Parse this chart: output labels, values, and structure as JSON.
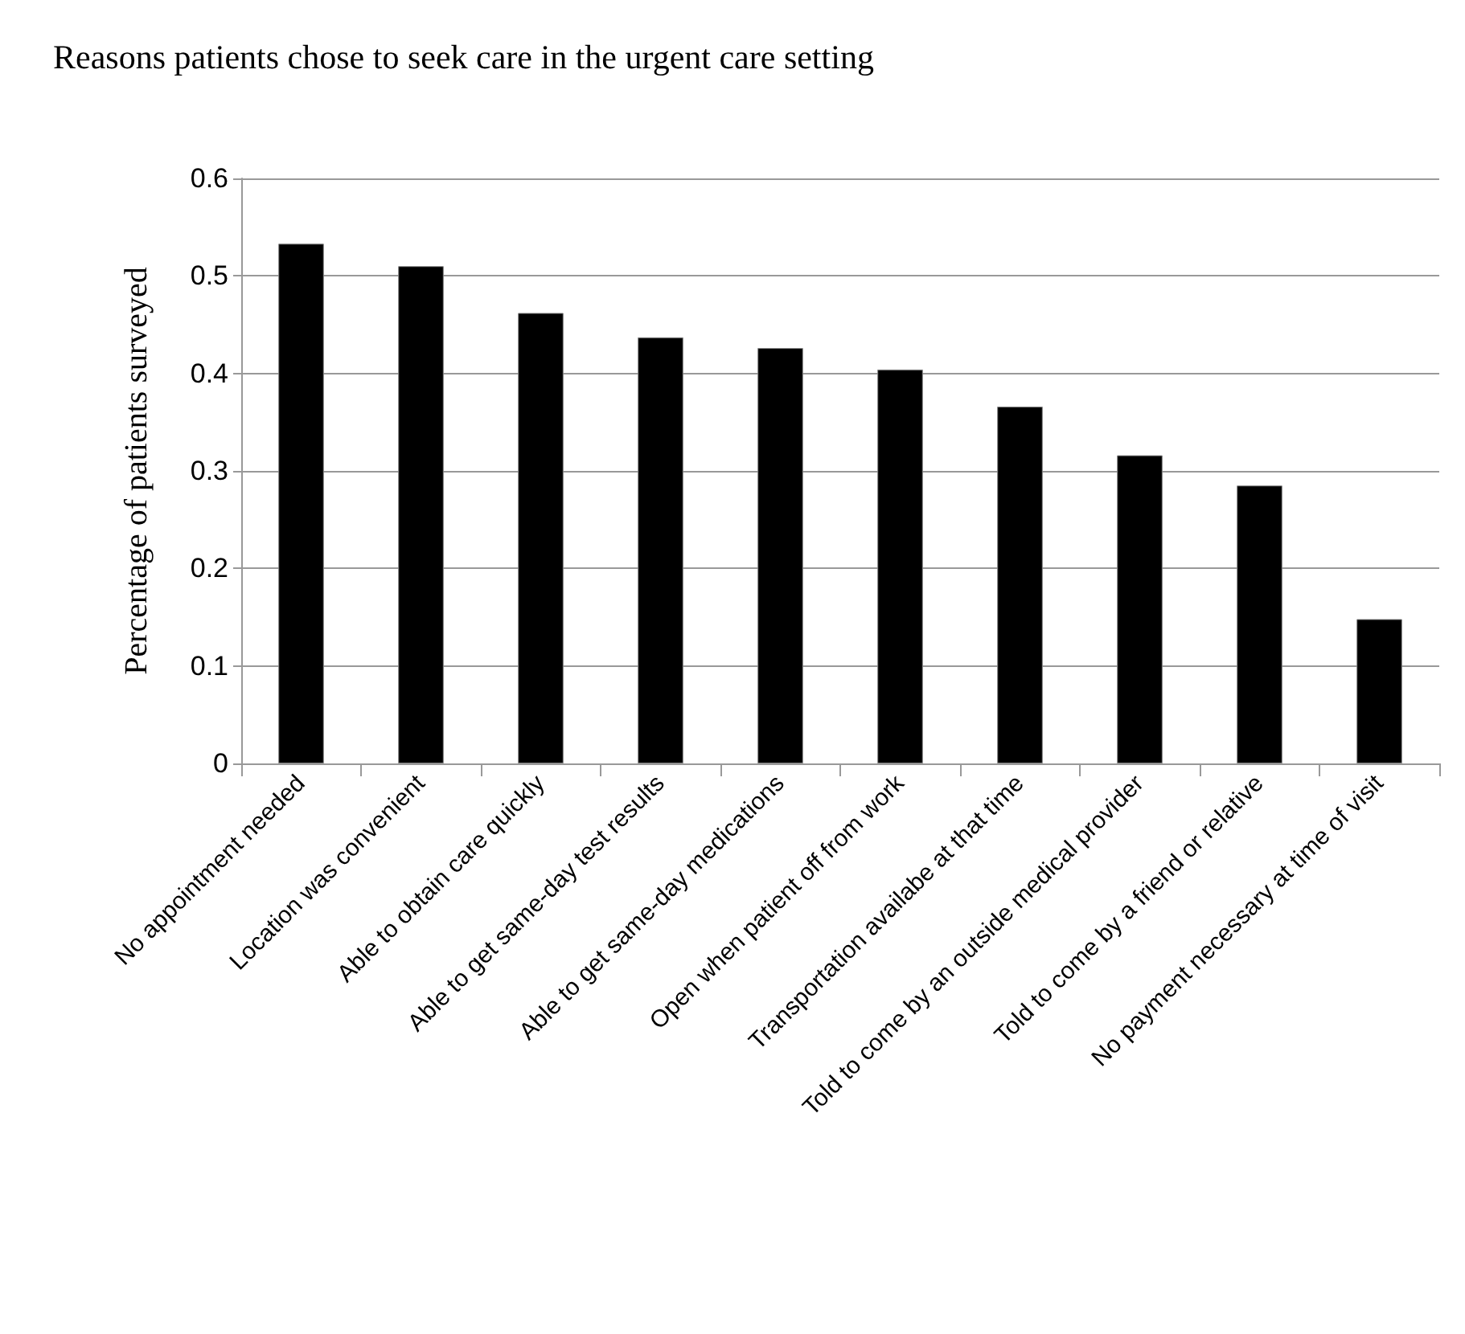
{
  "chart_data": {
    "type": "bar",
    "title": "Reasons patients chose to seek care in the urgent care setting",
    "ylabel": "Percentage of patients surveyed",
    "categories": [
      "No appointment needed",
      "Location was convenient",
      "Able to obtain care quickly",
      "Able to get same-day test results",
      "Able to get same-day medications",
      "Open when patient off from work",
      "Transportation availabe at that time",
      "Told to come by an outside medical provider",
      "Told to come by a friend or relative",
      "No payment necessary at time of visit"
    ],
    "values": [
      0.533,
      0.51,
      0.462,
      0.437,
      0.426,
      0.404,
      0.366,
      0.316,
      0.285,
      0.148
    ],
    "color": "#000000",
    "ylim": [
      0,
      0.6
    ],
    "yticks": [
      0,
      0.1,
      0.2,
      0.3,
      0.4,
      0.5,
      0.6
    ],
    "grid": "y"
  }
}
